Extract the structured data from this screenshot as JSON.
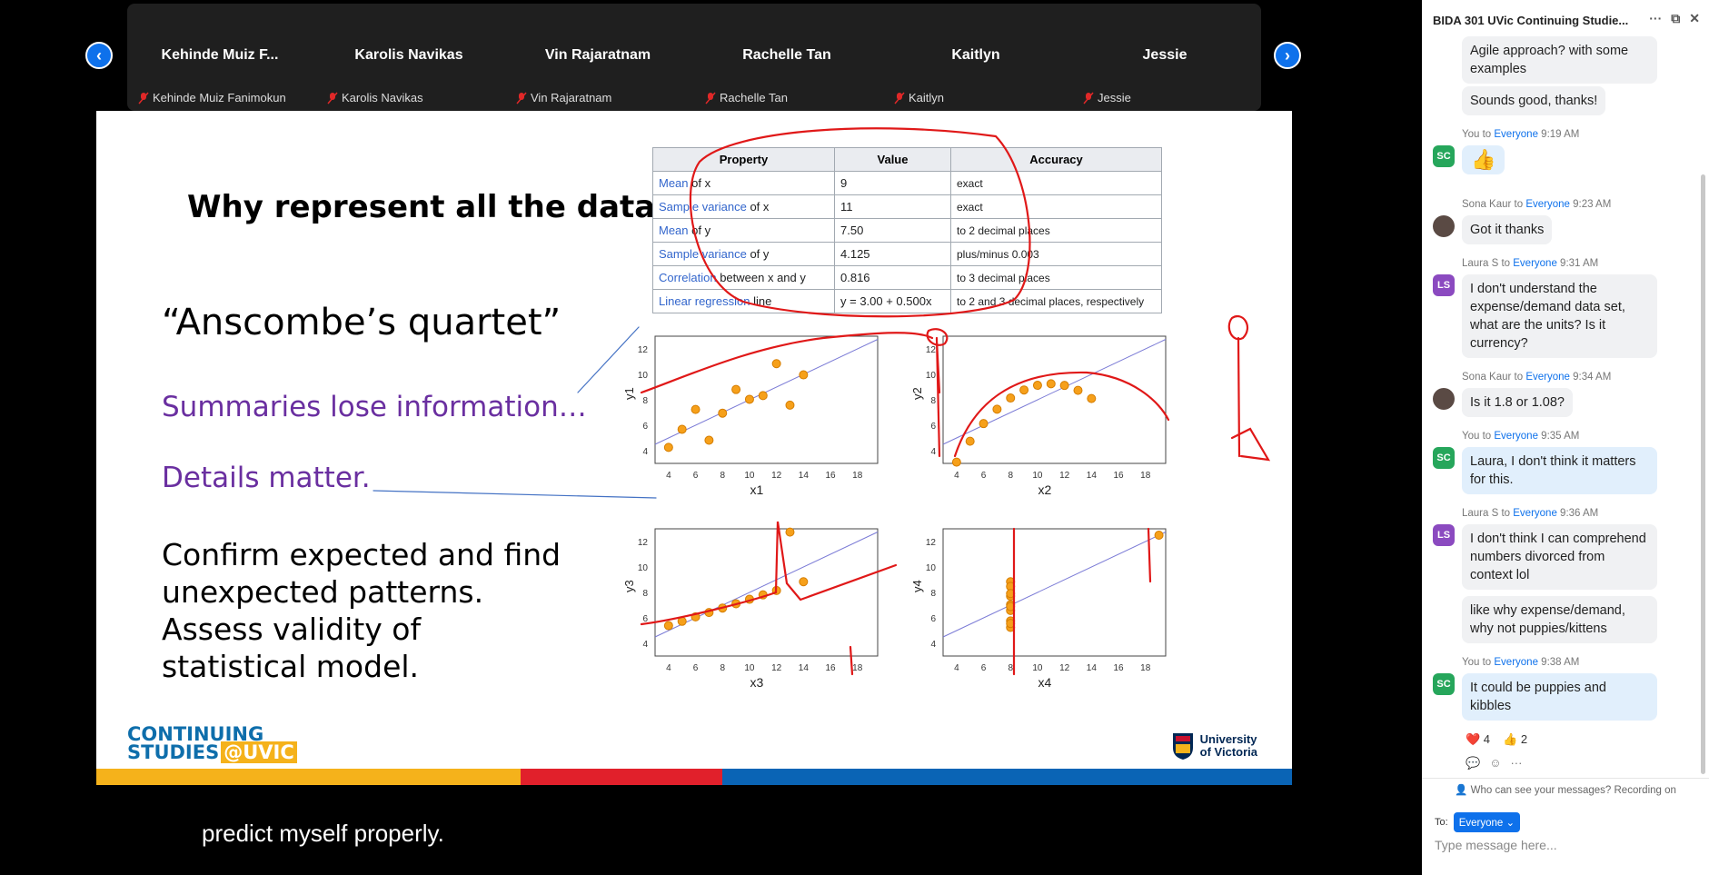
{
  "gallery": {
    "participants": [
      {
        "tile": "Kehinde Muiz F...",
        "label": "Kehinde Muiz Fanimokun"
      },
      {
        "tile": "Karolis Navikas",
        "label": "Karolis Navikas"
      },
      {
        "tile": "Vin Rajaratnam",
        "label": "Vin Rajaratnam"
      },
      {
        "tile": "Rachelle Tan",
        "label": "Rachelle Tan"
      },
      {
        "tile": "Kaitlyn",
        "label": "Kaitlyn"
      },
      {
        "tile": "Jessie",
        "label": "Jessie"
      }
    ],
    "prev_icon": "chevron-left-icon",
    "next_icon": "chevron-right-icon"
  },
  "slide": {
    "title": "Why represent all the data?",
    "quote": "“Anscombe’s quartet”",
    "point1": "Summaries lose information…",
    "point2": "Details matter.",
    "body": "Confirm expected and find unexpected patterns. Assess validity of statistical model.",
    "table": {
      "headers": [
        "Property",
        "Value",
        "Accuracy"
      ],
      "rows": [
        {
          "prop_link": "Mean",
          "prop_rest": " of x",
          "value": "9",
          "accuracy": "exact"
        },
        {
          "prop_link": "Sample variance",
          "prop_rest": " of x",
          "value": "11",
          "accuracy": "exact"
        },
        {
          "prop_link": "Mean",
          "prop_rest": " of y",
          "value": "7.50",
          "accuracy": "to 2 decimal places"
        },
        {
          "prop_link": "Sample variance",
          "prop_rest": " of y",
          "value": "4.125",
          "accuracy": "plus/minus 0.003"
        },
        {
          "prop_link": "Correlation",
          "prop_rest": " between x and y",
          "value": "0.816",
          "accuracy": "to 3 decimal places"
        },
        {
          "prop_link": "Linear regression",
          "prop_rest": " line",
          "value": "y = 3.00 + 0.500x",
          "accuracy": "to 2 and 3 decimal places, respectively"
        }
      ]
    },
    "plot_ticks": [
      "4",
      "6",
      "8",
      "10",
      "12",
      "14",
      "16",
      "18"
    ],
    "plot_yticks": [
      "4",
      "6",
      "8",
      "10",
      "12"
    ],
    "plot_xlabels": [
      "x1",
      "x2",
      "x3",
      "x4"
    ],
    "plot_ylabels": [
      "y1",
      "y2",
      "y3",
      "y4"
    ],
    "footer_left_line1": "CONTINUING",
    "footer_left_line2": "STUDIES",
    "footer_left_at": "@UVIC",
    "footer_right_line1": "University",
    "footer_right_line2": "of Victoria",
    "colors": {
      "yellow": "#f5b21b",
      "red": "#e1202b",
      "blue": "#0a64b5",
      "purple": "#6a2fa0"
    }
  },
  "chart_data": [
    {
      "type": "scatter",
      "xlabel": "x1",
      "ylabel": "y1",
      "xlim": [
        3,
        19.5
      ],
      "ylim": [
        3,
        13
      ],
      "x": [
        10,
        8,
        13,
        9,
        11,
        14,
        6,
        4,
        12,
        7,
        5
      ],
      "y": [
        8.04,
        6.95,
        7.58,
        8.81,
        8.33,
        9.96,
        7.24,
        4.26,
        10.84,
        4.82,
        5.68
      ]
    },
    {
      "type": "scatter",
      "xlabel": "x2",
      "ylabel": "y2",
      "xlim": [
        3,
        19.5
      ],
      "ylim": [
        3,
        13
      ],
      "x": [
        10,
        8,
        13,
        9,
        11,
        14,
        6,
        4,
        12,
        7,
        5
      ],
      "y": [
        9.14,
        8.14,
        8.74,
        8.77,
        9.26,
        8.1,
        6.13,
        3.1,
        9.13,
        7.26,
        4.74
      ]
    },
    {
      "type": "scatter",
      "xlabel": "x3",
      "ylabel": "y3",
      "xlim": [
        3,
        19.5
      ],
      "ylim": [
        3,
        13
      ],
      "x": [
        10,
        8,
        13,
        9,
        11,
        14,
        6,
        4,
        12,
        7,
        5
      ],
      "y": [
        7.46,
        6.77,
        12.74,
        7.11,
        7.81,
        8.84,
        6.08,
        5.39,
        8.15,
        6.42,
        5.73
      ]
    },
    {
      "type": "scatter",
      "xlabel": "x4",
      "ylabel": "y4",
      "xlim": [
        3,
        19.5
      ],
      "ylim": [
        3,
        13
      ],
      "x": [
        8,
        8,
        8,
        8,
        8,
        8,
        8,
        19,
        8,
        8,
        8
      ],
      "y": [
        6.58,
        5.76,
        7.71,
        8.84,
        8.47,
        7.04,
        5.25,
        12.5,
        5.56,
        7.91,
        6.89
      ]
    }
  ],
  "caption": "predict myself properly.",
  "chat": {
    "title": "BIDA 301 UVic Continuing Studie...",
    "messages_top": [
      "Agile approach? with some examples",
      "Sounds good, thanks!"
    ],
    "m1_meta_from": "You to ",
    "m1_meta_to": "Everyone",
    "m1_time": " 9:19 AM",
    "m1_text": "👍",
    "m2_meta_from": "Sona Kaur to ",
    "m2_meta_to": "Everyone",
    "m2_time": " 9:23 AM",
    "m2_text": "Got it thanks",
    "m3_meta_from": "Laura S to ",
    "m3_meta_to": "Everyone",
    "m3_time": " 9:31 AM",
    "m3_text": "I don't understand the expense/demand data set, what are the units? Is it currency?",
    "m4_meta_from": "Sona Kaur to ",
    "m4_meta_to": "Everyone",
    "m4_time": " 9:34 AM",
    "m4_text": "Is it 1.8 or 1.08?",
    "m5_meta_from": "You to ",
    "m5_meta_to": "Everyone",
    "m5_time": " 9:35 AM",
    "m5_text": "Laura, I don't think it matters for this.",
    "m6_meta_from": "Laura S to ",
    "m6_meta_to": "Everyone",
    "m6_time": " 9:36 AM",
    "m6_text": "I don't think I can comprehend numbers divorced from context lol",
    "m6b_text": "like why expense/demand, why not puppies/kittens",
    "m7_meta_from": "You to ",
    "m7_meta_to": "Everyone",
    "m7_time": " 9:38 AM",
    "m7_text": "It could be puppies and kibbles",
    "avatar_sc": "SC",
    "avatar_ls": "LS",
    "reaction_heart": "❤️ 4",
    "reaction_thumbs": "👍 2",
    "privacy": "Who can see your messages? Recording on",
    "to_label": "To:",
    "to_value": "Everyone ⌄",
    "input_placeholder": "Type message here..."
  }
}
